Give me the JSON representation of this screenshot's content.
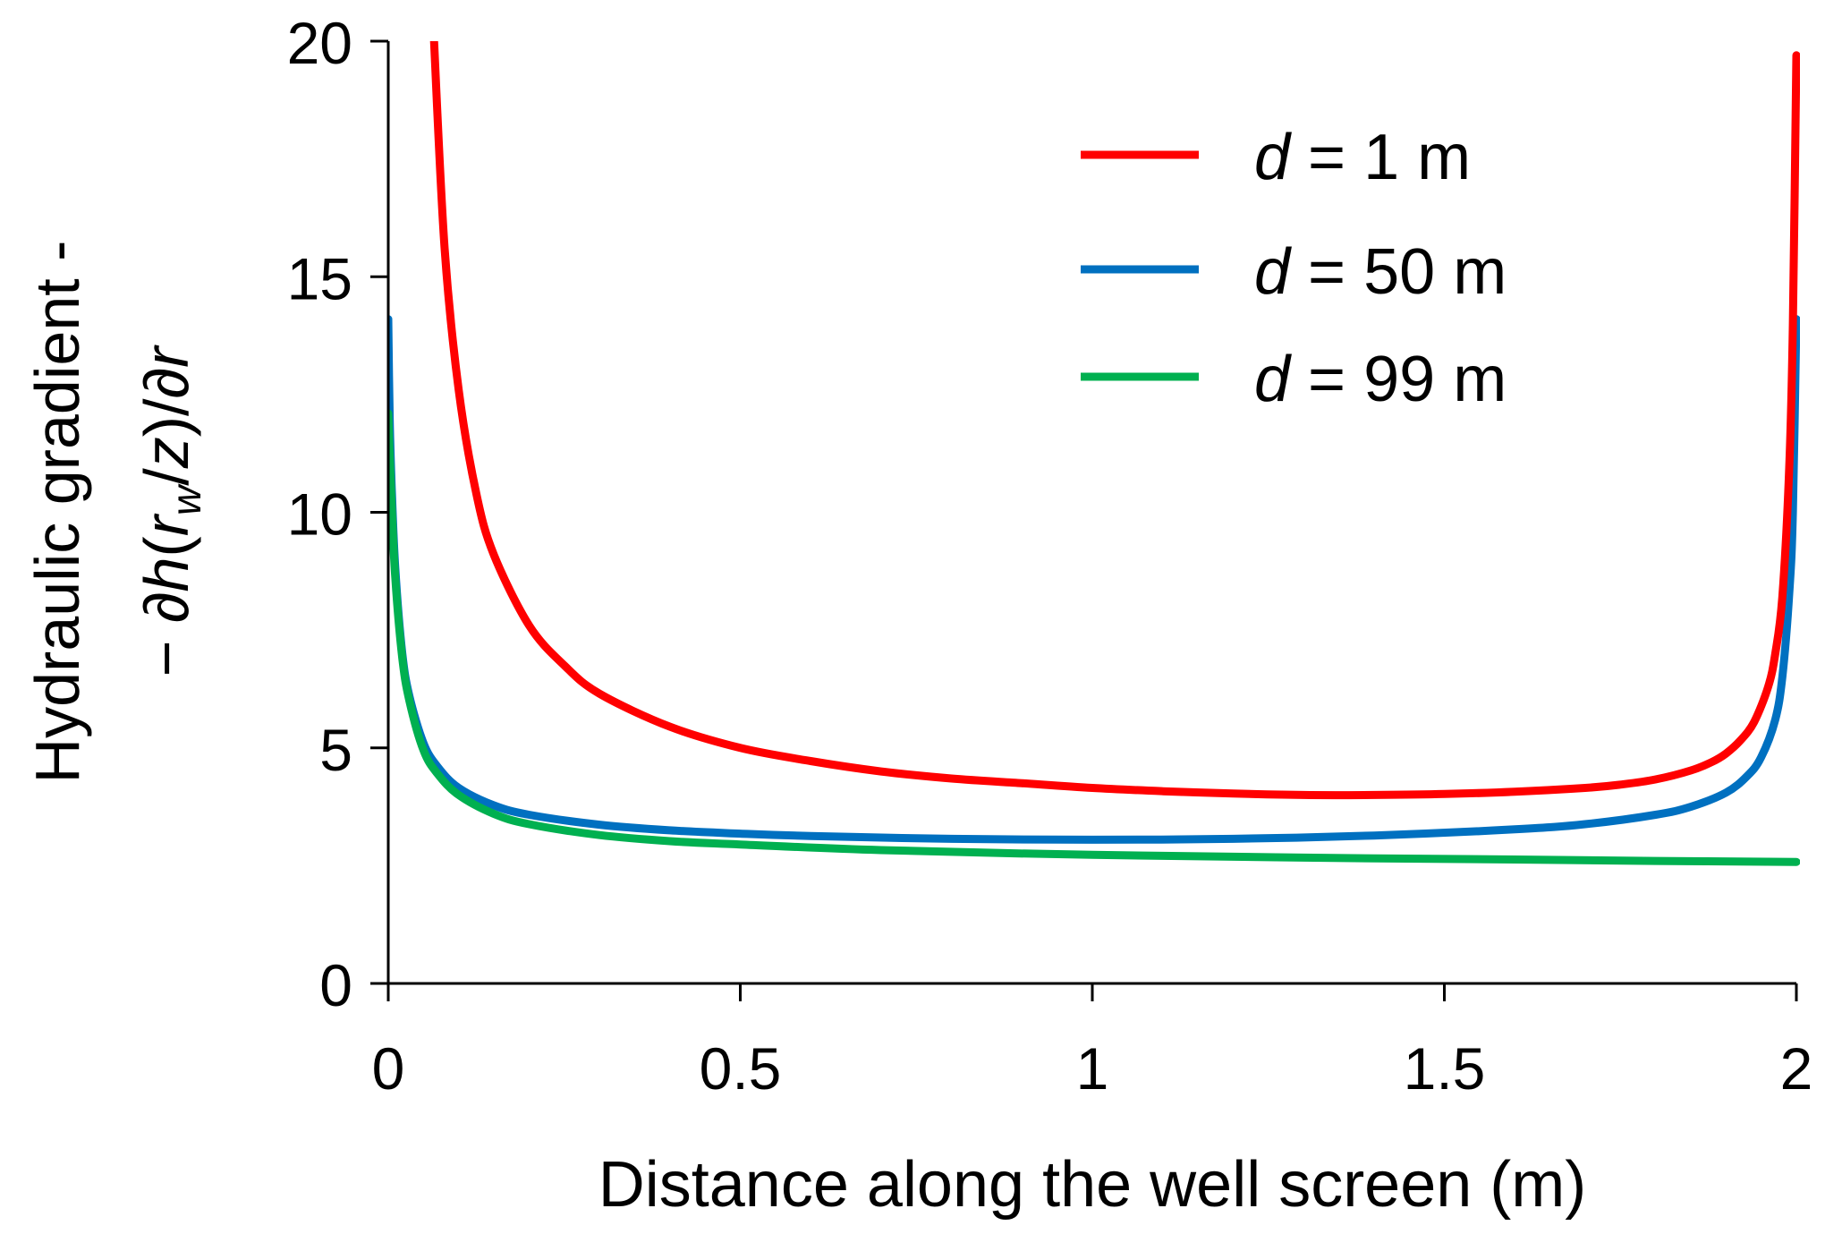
{
  "chart_data": {
    "type": "line",
    "title": "",
    "xlabel": "Distance along the well screen (m)",
    "ylabel": {
      "line1": "Hydraulic gradient -",
      "line2": {
        "t1": "− ∂",
        "t2": "h",
        "t3": "(",
        "t4": "r",
        "t5": "w",
        "t6": "/",
        "t7": "z",
        "t8": ")/∂",
        "t9": "r"
      }
    },
    "xlim": [
      0,
      2
    ],
    "ylim": [
      0,
      20
    ],
    "xticks": [
      0,
      0.5,
      1,
      1.5,
      2
    ],
    "xtick_labels": [
      "0",
      "0.5",
      "1",
      "1.5",
      "2"
    ],
    "yticks": [
      0,
      5,
      10,
      15,
      20
    ],
    "ytick_labels": [
      "0",
      "5",
      "10",
      "15",
      "20"
    ],
    "grid": false,
    "legend_position": "top-right",
    "series": [
      {
        "name": "d = 1 m",
        "legend": {
          "var": "d",
          "rest": " = 1 m"
        },
        "color": "#ff0000",
        "x": [
          0.065,
          0.08,
          0.1,
          0.125,
          0.15,
          0.2,
          0.25,
          0.3,
          0.4,
          0.5,
          0.6,
          0.7,
          0.8,
          0.9,
          1.0,
          1.1,
          1.2,
          1.3,
          1.4,
          1.5,
          1.6,
          1.7,
          1.75,
          1.8,
          1.85,
          1.88,
          1.9,
          1.92,
          1.94,
          1.96,
          1.97,
          1.98,
          1.99,
          1.995,
          2.0
        ],
        "y": [
          20.0,
          15.6,
          12.6,
          10.4,
          9.1,
          7.6,
          6.75,
          6.15,
          5.45,
          5.0,
          4.72,
          4.5,
          4.35,
          4.25,
          4.15,
          4.08,
          4.03,
          4.0,
          4.0,
          4.02,
          4.07,
          4.15,
          4.22,
          4.33,
          4.52,
          4.7,
          4.88,
          5.15,
          5.55,
          6.3,
          7.0,
          8.2,
          11.0,
          14.0,
          19.7
        ]
      },
      {
        "name": "d = 50 m",
        "legend": {
          "var": "d",
          "rest": " = 50 m"
        },
        "color": "#0070c0",
        "x": [
          0.0,
          0.002,
          0.005,
          0.01,
          0.02,
          0.03,
          0.05,
          0.07,
          0.1,
          0.15,
          0.2,
          0.3,
          0.4,
          0.5,
          0.6,
          0.8,
          1.0,
          1.2,
          1.4,
          1.6,
          1.7,
          1.8,
          1.85,
          1.9,
          1.93,
          1.95,
          1.97,
          1.98,
          1.99,
          1.995,
          2.0
        ],
        "y": [
          14.1,
          12.0,
          10.5,
          8.8,
          7.0,
          6.1,
          5.1,
          4.6,
          4.15,
          3.78,
          3.58,
          3.37,
          3.25,
          3.18,
          3.13,
          3.07,
          3.05,
          3.07,
          3.14,
          3.27,
          3.38,
          3.58,
          3.75,
          4.05,
          4.4,
          4.8,
          5.6,
          6.5,
          8.3,
          10.0,
          14.1
        ]
      },
      {
        "name": "d = 99 m",
        "legend": {
          "var": "d",
          "rest": " = 99 m"
        },
        "color": "#00b050",
        "x": [
          0.0,
          0.002,
          0.005,
          0.01,
          0.02,
          0.03,
          0.05,
          0.07,
          0.1,
          0.15,
          0.2,
          0.3,
          0.4,
          0.5,
          0.7,
          1.0,
          1.3,
          1.6,
          1.8,
          2.0
        ],
        "y": [
          12.1,
          11.2,
          10.1,
          8.6,
          6.9,
          6.0,
          4.95,
          4.45,
          4.0,
          3.6,
          3.38,
          3.15,
          3.02,
          2.95,
          2.83,
          2.73,
          2.67,
          2.63,
          2.6,
          2.58
        ]
      }
    ]
  }
}
